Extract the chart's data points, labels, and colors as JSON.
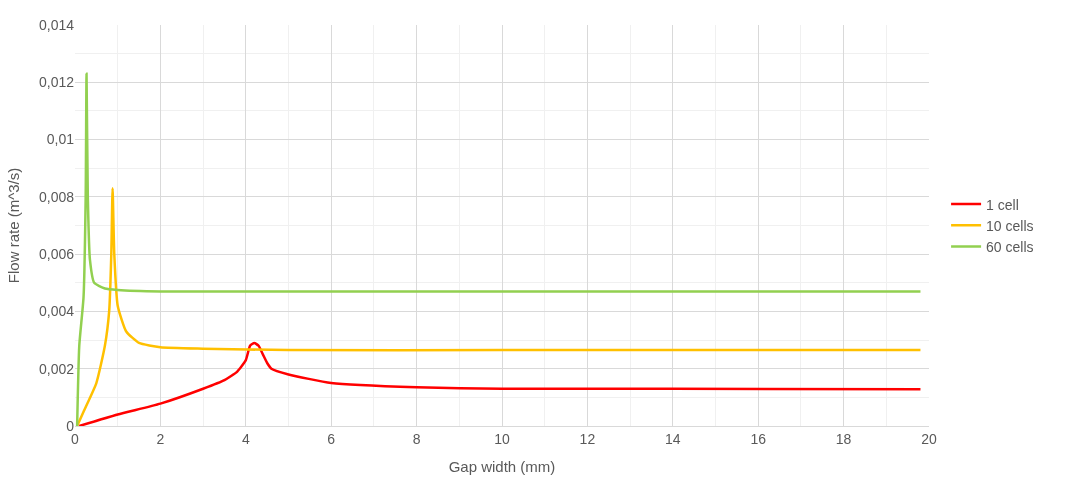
{
  "chart_data": {
    "type": "line",
    "xlabel": "Gap width (mm)",
    "ylabel": "Flow rate (m^3/s)",
    "xlim": [
      0,
      20
    ],
    "xticks": [
      0,
      2,
      4,
      6,
      8,
      10,
      12,
      14,
      16,
      18,
      20
    ],
    "ylim": [
      0,
      0.014
    ],
    "yticks": [
      {
        "value": 0,
        "label": "0"
      },
      {
        "value": 0.002,
        "label": "0,002"
      },
      {
        "value": 0.004,
        "label": "0,004"
      },
      {
        "value": 0.006,
        "label": "0,006"
      },
      {
        "value": 0.008,
        "label": "0,008"
      },
      {
        "value": 0.01,
        "label": "0,01"
      },
      {
        "value": 0.012,
        "label": "0,012"
      },
      {
        "value": 0.014,
        "label": "0,014"
      }
    ],
    "grid": true,
    "legend": "right",
    "marker": "none",
    "line_style": "solid",
    "series": [
      {
        "name": "1 cell",
        "color": "#ff0000",
        "x": [
          0.1,
          1,
          2,
          3,
          3.5,
          3.8,
          4.0,
          4.1,
          4.2,
          4.3,
          4.4,
          4.5,
          4.6,
          5,
          6,
          8,
          10,
          14,
          19.8
        ],
        "values": [
          0,
          0.0004,
          0.00078,
          0.0013,
          0.0016,
          0.0019,
          0.0023,
          0.0028,
          0.0029,
          0.0028,
          0.0025,
          0.0022,
          0.002,
          0.0018,
          0.0015,
          0.00135,
          0.0013,
          0.0013,
          0.00128
        ]
      },
      {
        "name": "10 cells",
        "color": "#ffc000",
        "x": [
          0.05,
          0.2,
          0.5,
          0.7,
          0.8,
          0.85,
          0.88,
          0.92,
          1.0,
          1.2,
          1.5,
          2,
          3,
          5,
          10,
          19.8
        ],
        "values": [
          0,
          0.0005,
          0.0015,
          0.0028,
          0.004,
          0.006,
          0.0083,
          0.006,
          0.0042,
          0.0033,
          0.0029,
          0.00275,
          0.0027,
          0.00265,
          0.00265,
          0.00265
        ]
      },
      {
        "name": "60 cells",
        "color": "#92d050",
        "x": [
          0.05,
          0.1,
          0.2,
          0.25,
          0.27,
          0.3,
          0.35,
          0.45,
          0.7,
          1,
          2,
          10,
          19.8
        ],
        "values": [
          0,
          0.0028,
          0.0045,
          0.008,
          0.0123,
          0.008,
          0.0058,
          0.005,
          0.0048,
          0.00475,
          0.0047,
          0.0047,
          0.0047
        ]
      }
    ]
  }
}
